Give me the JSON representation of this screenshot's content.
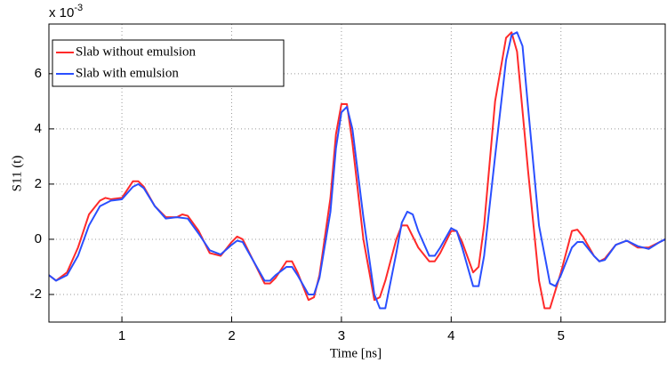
{
  "chart_data": {
    "type": "line",
    "xlabel": "Time [ns]",
    "ylabel": "S11 (t)",
    "y_multiplier": {
      "base": "x 10",
      "exponent": "-3"
    },
    "xlim": [
      0.335,
      5.95
    ],
    "xticks": [
      1,
      2,
      3,
      4,
      5
    ],
    "ylim": [
      -3,
      7.8
    ],
    "yticks": [
      -2,
      0,
      2,
      4,
      6
    ],
    "grid": true,
    "legend": "upper left",
    "series": [
      {
        "name": "Slab without emulsion",
        "color": "#ff2a2a",
        "x": [
          0.335,
          0.4,
          0.5,
          0.6,
          0.7,
          0.8,
          0.85,
          0.9,
          1.0,
          1.1,
          1.15,
          1.2,
          1.3,
          1.4,
          1.5,
          1.55,
          1.6,
          1.7,
          1.8,
          1.9,
          2.0,
          2.05,
          2.1,
          2.2,
          2.3,
          2.35,
          2.4,
          2.5,
          2.55,
          2.6,
          2.7,
          2.75,
          2.8,
          2.9,
          2.95,
          3.0,
          3.05,
          3.1,
          3.2,
          3.3,
          3.35,
          3.4,
          3.5,
          3.55,
          3.6,
          3.7,
          3.8,
          3.85,
          3.9,
          4.0,
          4.05,
          4.1,
          4.2,
          4.25,
          4.3,
          4.4,
          4.5,
          4.55,
          4.6,
          4.7,
          4.8,
          4.85,
          4.9,
          5.0,
          5.1,
          5.15,
          5.2,
          5.3,
          5.35,
          5.4,
          5.5,
          5.6,
          5.7,
          5.8,
          5.9,
          5.95
        ],
        "values": [
          -1.3,
          -1.5,
          -1.2,
          -0.3,
          0.9,
          1.4,
          1.5,
          1.45,
          1.5,
          2.1,
          2.1,
          1.9,
          1.2,
          0.8,
          0.8,
          0.9,
          0.85,
          0.3,
          -0.5,
          -0.6,
          -0.1,
          0.1,
          0.0,
          -0.8,
          -1.6,
          -1.6,
          -1.4,
          -0.8,
          -0.8,
          -1.2,
          -2.2,
          -2.1,
          -1.3,
          1.5,
          3.8,
          4.9,
          4.9,
          3.5,
          0.0,
          -2.2,
          -2.1,
          -1.5,
          0.0,
          0.5,
          0.5,
          -0.3,
          -0.8,
          -0.8,
          -0.5,
          0.3,
          0.3,
          -0.1,
          -1.2,
          -1.0,
          0.5,
          5.0,
          7.3,
          7.5,
          6.8,
          2.5,
          -1.5,
          -2.5,
          -2.5,
          -1.2,
          0.3,
          0.35,
          0.1,
          -0.6,
          -0.8,
          -0.7,
          -0.2,
          -0.05,
          -0.3,
          -0.3,
          -0.1,
          0.0
        ]
      },
      {
        "name": "Slab with emulsion",
        "color": "#2a4fff",
        "x": [
          0.335,
          0.4,
          0.5,
          0.6,
          0.7,
          0.8,
          0.9,
          1.0,
          1.1,
          1.15,
          1.2,
          1.3,
          1.4,
          1.5,
          1.6,
          1.7,
          1.8,
          1.9,
          2.0,
          2.05,
          2.1,
          2.2,
          2.3,
          2.35,
          2.4,
          2.5,
          2.55,
          2.6,
          2.7,
          2.75,
          2.8,
          2.9,
          2.95,
          3.0,
          3.05,
          3.1,
          3.2,
          3.3,
          3.35,
          3.4,
          3.5,
          3.55,
          3.6,
          3.65,
          3.7,
          3.8,
          3.85,
          3.9,
          4.0,
          4.05,
          4.1,
          4.2,
          4.25,
          4.3,
          4.4,
          4.5,
          4.55,
          4.6,
          4.65,
          4.7,
          4.8,
          4.9,
          4.95,
          5.0,
          5.1,
          5.15,
          5.2,
          5.3,
          5.35,
          5.4,
          5.5,
          5.6,
          5.7,
          5.8,
          5.9,
          5.95
        ],
        "values": [
          -1.3,
          -1.5,
          -1.3,
          -0.6,
          0.5,
          1.2,
          1.4,
          1.45,
          1.9,
          2.0,
          1.85,
          1.2,
          0.75,
          0.8,
          0.75,
          0.2,
          -0.4,
          -0.55,
          -0.2,
          -0.05,
          -0.1,
          -0.8,
          -1.5,
          -1.5,
          -1.3,
          -1.0,
          -1.0,
          -1.3,
          -2.0,
          -2.0,
          -1.4,
          1.0,
          3.3,
          4.6,
          4.8,
          4.0,
          0.8,
          -2.0,
          -2.5,
          -2.5,
          -0.5,
          0.6,
          1.0,
          0.9,
          0.3,
          -0.6,
          -0.6,
          -0.3,
          0.4,
          0.3,
          -0.3,
          -1.7,
          -1.7,
          -0.6,
          3.0,
          6.5,
          7.4,
          7.5,
          7.0,
          4.8,
          0.5,
          -1.6,
          -1.7,
          -1.3,
          -0.3,
          -0.1,
          -0.1,
          -0.6,
          -0.8,
          -0.75,
          -0.2,
          -0.05,
          -0.25,
          -0.35,
          -0.1,
          0.0
        ]
      }
    ]
  }
}
